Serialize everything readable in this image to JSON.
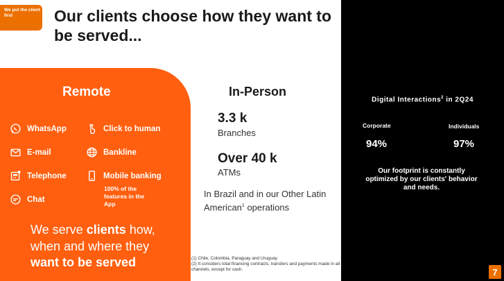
{
  "tag": "We put the client first",
  "title": "Our clients choose how they want to be served...",
  "remote": {
    "title": "Remote",
    "channels": [
      {
        "label": "WhatsApp",
        "icon": "whatsapp-icon"
      },
      {
        "label": "E-mail",
        "icon": "email-icon"
      },
      {
        "label": "Telephone",
        "icon": "telephone-icon"
      },
      {
        "label": "Chat",
        "icon": "chat-icon"
      },
      {
        "label": "Click to human",
        "icon": "click-hand-icon"
      },
      {
        "label": "Bankline",
        "icon": "globe-icon"
      },
      {
        "label": "Mobile banking",
        "icon": "mobile-phone-icon"
      }
    ],
    "mobile_note": "100% of the features in the App",
    "serve_1": "We serve ",
    "serve_2": "clients",
    "serve_3": " how, when and where they ",
    "serve_4": "want to be served"
  },
  "in_person": {
    "title": "In-Person",
    "branches_value": "3.3 k",
    "branches_label": "Branches",
    "atms_value": "Over 40 k",
    "atms_label": "ATMs",
    "coverage_1": "In Brazil and in our Other Latin American",
    "coverage_sup": "1",
    "coverage_2": " operations"
  },
  "footnotes": [
    "(1) Chile, Colombia, Paraguay and Uruguay",
    "(2) It considers total financing contracts, transfers and payments made in all channels, except for cash."
  ],
  "digital": {
    "title_1": "Digital Interactions",
    "title_sup": "2",
    "title_2": " in 2Q24",
    "corporate_label": "Corporate",
    "corporate_value": "94%",
    "individuals_label": "Individuals",
    "individuals_value": "97%",
    "footprint": "Our footprint is constantly optimized by our clients' behavior and needs."
  },
  "page_number": "7",
  "colors": {
    "orange": "#ff5f0f",
    "tag_orange": "#ec7000",
    "black": "#000000"
  }
}
